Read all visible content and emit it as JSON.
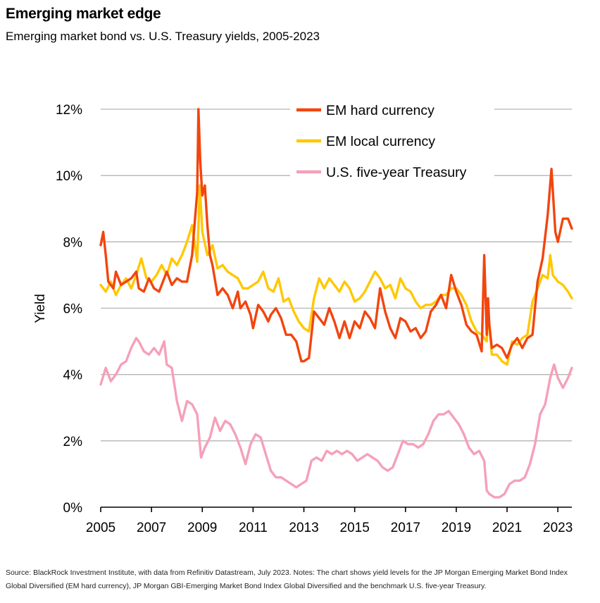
{
  "header": {
    "title": "Emerging market edge",
    "subtitle": "Emerging market bond vs. U.S. Treasury yields, 2005-2023"
  },
  "footer": {
    "source": "Source: BlackRock Investment Institute, with data from Refinitiv Datastream, July 2023. Notes: The chart shows yield levels for the JP Morgan Emerging Market Bond Index Global Diversified (EM hard currency), JP Morgan GBI-Emerging Market Bond Index Global Diversified and the benchmark U.S. five-year Treasury."
  },
  "chart_data": {
    "type": "line",
    "title": "Emerging market edge",
    "subtitle": "Emerging market bond vs. U.S. Treasury yields, 2005-2023",
    "xlabel": "",
    "ylabel": "Yield",
    "xlim": [
      2005,
      2023.55
    ],
    "ylim": [
      0,
      12
    ],
    "x_ticks": [
      2005,
      2007,
      2009,
      2011,
      2013,
      2015,
      2017,
      2019,
      2021,
      2023
    ],
    "y_ticks": [
      0,
      2,
      4,
      6,
      8,
      10,
      12
    ],
    "y_tick_labels": [
      "0%",
      "2%",
      "4%",
      "6%",
      "8%",
      "10%",
      "12%"
    ],
    "grid": "horizontal",
    "legend_position": "top-center",
    "series": [
      {
        "name": "EM hard currency",
        "color": "#f2450f",
        "x": [
          2005.0,
          2005.1,
          2005.2,
          2005.3,
          2005.5,
          2005.6,
          2005.8,
          2006.0,
          2006.2,
          2006.4,
          2006.5,
          2006.7,
          2006.9,
          2007.1,
          2007.3,
          2007.5,
          2007.6,
          2007.8,
          2008.0,
          2008.2,
          2008.4,
          2008.6,
          2008.8,
          2008.85,
          2008.92,
          2009.0,
          2009.1,
          2009.2,
          2009.3,
          2009.4,
          2009.6,
          2009.8,
          2010.0,
          2010.2,
          2010.4,
          2010.5,
          2010.7,
          2010.9,
          2011.0,
          2011.2,
          2011.4,
          2011.6,
          2011.7,
          2011.9,
          2012.1,
          2012.3,
          2012.5,
          2012.7,
          2012.9,
          2013.0,
          2013.2,
          2013.4,
          2013.6,
          2013.8,
          2014.0,
          2014.2,
          2014.4,
          2014.6,
          2014.8,
          2015.0,
          2015.2,
          2015.4,
          2015.6,
          2015.8,
          2016.0,
          2016.2,
          2016.4,
          2016.6,
          2016.8,
          2017.0,
          2017.2,
          2017.4,
          2017.6,
          2017.8,
          2018.0,
          2018.2,
          2018.4,
          2018.6,
          2018.8,
          2019.0,
          2019.2,
          2019.4,
          2019.6,
          2019.8,
          2020.0,
          2020.1,
          2020.2,
          2020.25,
          2020.3,
          2020.4,
          2020.6,
          2020.8,
          2021.0,
          2021.2,
          2021.4,
          2021.6,
          2021.8,
          2022.0,
          2022.2,
          2022.4,
          2022.6,
          2022.75,
          2022.9,
          2023.0,
          2023.2,
          2023.4,
          2023.55
        ],
        "values": [
          7.9,
          8.3,
          7.6,
          6.8,
          6.6,
          7.1,
          6.7,
          6.8,
          6.9,
          7.1,
          6.6,
          6.5,
          6.9,
          6.6,
          6.5,
          6.9,
          7.1,
          6.7,
          6.9,
          6.8,
          6.8,
          7.6,
          9.5,
          12.0,
          10.4,
          9.4,
          9.7,
          8.5,
          7.6,
          7.3,
          6.4,
          6.6,
          6.4,
          6.0,
          6.5,
          6.0,
          6.2,
          5.8,
          5.4,
          6.1,
          5.9,
          5.6,
          5.8,
          6.0,
          5.7,
          5.2,
          5.2,
          5.0,
          4.4,
          4.4,
          4.5,
          5.9,
          5.7,
          5.5,
          6.0,
          5.6,
          5.1,
          5.6,
          5.1,
          5.6,
          5.4,
          5.9,
          5.7,
          5.4,
          6.6,
          5.9,
          5.4,
          5.1,
          5.7,
          5.6,
          5.3,
          5.4,
          5.1,
          5.3,
          5.9,
          6.1,
          6.4,
          6.0,
          7.0,
          6.5,
          6.1,
          5.5,
          5.3,
          5.2,
          4.7,
          7.6,
          5.2,
          6.3,
          5.5,
          4.8,
          4.9,
          4.8,
          4.5,
          4.9,
          5.1,
          4.8,
          5.1,
          5.2,
          6.8,
          7.5,
          8.8,
          10.2,
          8.3,
          8.0,
          8.7,
          8.7,
          8.4
        ]
      },
      {
        "name": "EM local currency",
        "color": "#ffc800",
        "x": [
          2005.0,
          2005.2,
          2005.4,
          2005.6,
          2005.8,
          2006.0,
          2006.2,
          2006.4,
          2006.6,
          2006.8,
          2007.0,
          2007.2,
          2007.4,
          2007.6,
          2007.8,
          2008.0,
          2008.2,
          2008.4,
          2008.6,
          2008.8,
          2008.9,
          2009.0,
          2009.2,
          2009.4,
          2009.6,
          2009.8,
          2010.0,
          2010.2,
          2010.4,
          2010.6,
          2010.8,
          2011.0,
          2011.2,
          2011.4,
          2011.6,
          2011.8,
          2012.0,
          2012.2,
          2012.4,
          2012.6,
          2012.8,
          2013.0,
          2013.2,
          2013.4,
          2013.6,
          2013.8,
          2014.0,
          2014.2,
          2014.4,
          2014.6,
          2014.8,
          2015.0,
          2015.2,
          2015.4,
          2015.6,
          2015.8,
          2016.0,
          2016.2,
          2016.4,
          2016.6,
          2016.8,
          2017.0,
          2017.2,
          2017.4,
          2017.6,
          2017.8,
          2018.0,
          2018.2,
          2018.4,
          2018.6,
          2018.8,
          2019.0,
          2019.2,
          2019.4,
          2019.6,
          2019.8,
          2020.0,
          2020.2,
          2020.25,
          2020.4,
          2020.6,
          2020.8,
          2021.0,
          2021.2,
          2021.4,
          2021.6,
          2021.8,
          2022.0,
          2022.2,
          2022.4,
          2022.6,
          2022.7,
          2022.8,
          2023.0,
          2023.2,
          2023.4,
          2023.55
        ],
        "values": [
          6.7,
          6.5,
          6.8,
          6.4,
          6.7,
          6.9,
          6.6,
          7.0,
          7.5,
          6.9,
          6.8,
          7.0,
          7.3,
          7.0,
          7.5,
          7.3,
          7.6,
          8.0,
          8.5,
          7.4,
          9.7,
          8.3,
          7.6,
          7.9,
          7.2,
          7.3,
          7.1,
          7.0,
          6.9,
          6.6,
          6.6,
          6.7,
          6.8,
          7.1,
          6.6,
          6.5,
          6.9,
          6.2,
          6.3,
          5.9,
          5.6,
          5.4,
          5.3,
          6.3,
          6.9,
          6.6,
          6.9,
          6.7,
          6.5,
          6.8,
          6.6,
          6.2,
          6.3,
          6.5,
          6.8,
          7.1,
          6.9,
          6.6,
          6.7,
          6.3,
          6.9,
          6.6,
          6.5,
          6.2,
          6.0,
          6.1,
          6.1,
          6.2,
          6.4,
          6.4,
          6.6,
          6.6,
          6.4,
          6.1,
          5.6,
          5.3,
          5.2,
          5.0,
          6.0,
          4.6,
          4.6,
          4.4,
          4.3,
          5.0,
          4.9,
          5.1,
          5.2,
          6.2,
          6.6,
          7.0,
          6.9,
          7.6,
          7.0,
          6.8,
          6.7,
          6.5,
          6.3
        ]
      },
      {
        "name": "U.S. five-year Treasury",
        "color": "#f5a0b9",
        "x": [
          2005.0,
          2005.2,
          2005.4,
          2005.6,
          2005.8,
          2006.0,
          2006.2,
          2006.4,
          2006.5,
          2006.7,
          2006.9,
          2007.1,
          2007.3,
          2007.5,
          2007.6,
          2007.8,
          2008.0,
          2008.2,
          2008.4,
          2008.6,
          2008.8,
          2008.95,
          2009.1,
          2009.3,
          2009.5,
          2009.7,
          2009.9,
          2010.1,
          2010.3,
          2010.5,
          2010.7,
          2010.9,
          2011.1,
          2011.3,
          2011.5,
          2011.7,
          2011.9,
          2012.1,
          2012.3,
          2012.5,
          2012.7,
          2012.9,
          2013.1,
          2013.3,
          2013.5,
          2013.7,
          2013.9,
          2014.1,
          2014.3,
          2014.5,
          2014.7,
          2014.9,
          2015.1,
          2015.3,
          2015.5,
          2015.7,
          2015.9,
          2016.1,
          2016.3,
          2016.5,
          2016.7,
          2016.9,
          2017.1,
          2017.3,
          2017.5,
          2017.7,
          2017.9,
          2018.1,
          2018.3,
          2018.5,
          2018.7,
          2018.9,
          2019.1,
          2019.3,
          2019.5,
          2019.7,
          2019.9,
          2020.1,
          2020.2,
          2020.3,
          2020.5,
          2020.7,
          2020.9,
          2021.1,
          2021.3,
          2021.5,
          2021.7,
          2021.9,
          2022.1,
          2022.3,
          2022.5,
          2022.7,
          2022.85,
          2023.0,
          2023.2,
          2023.4,
          2023.55
        ],
        "values": [
          3.7,
          4.2,
          3.8,
          4.0,
          4.3,
          4.4,
          4.8,
          5.1,
          5.0,
          4.7,
          4.6,
          4.8,
          4.6,
          5.0,
          4.3,
          4.2,
          3.2,
          2.6,
          3.2,
          3.1,
          2.8,
          1.5,
          1.8,
          2.1,
          2.7,
          2.3,
          2.6,
          2.5,
          2.2,
          1.8,
          1.3,
          1.9,
          2.2,
          2.1,
          1.6,
          1.1,
          0.9,
          0.9,
          0.8,
          0.7,
          0.6,
          0.7,
          0.8,
          1.4,
          1.5,
          1.4,
          1.7,
          1.6,
          1.7,
          1.6,
          1.7,
          1.6,
          1.4,
          1.5,
          1.6,
          1.5,
          1.4,
          1.2,
          1.1,
          1.2,
          1.6,
          2.0,
          1.9,
          1.9,
          1.8,
          1.9,
          2.2,
          2.6,
          2.8,
          2.8,
          2.9,
          2.7,
          2.5,
          2.2,
          1.8,
          1.6,
          1.7,
          1.4,
          0.5,
          0.4,
          0.3,
          0.3,
          0.4,
          0.7,
          0.8,
          0.8,
          0.9,
          1.3,
          1.9,
          2.8,
          3.1,
          3.9,
          4.3,
          3.9,
          3.6,
          3.9,
          4.2
        ]
      }
    ]
  }
}
